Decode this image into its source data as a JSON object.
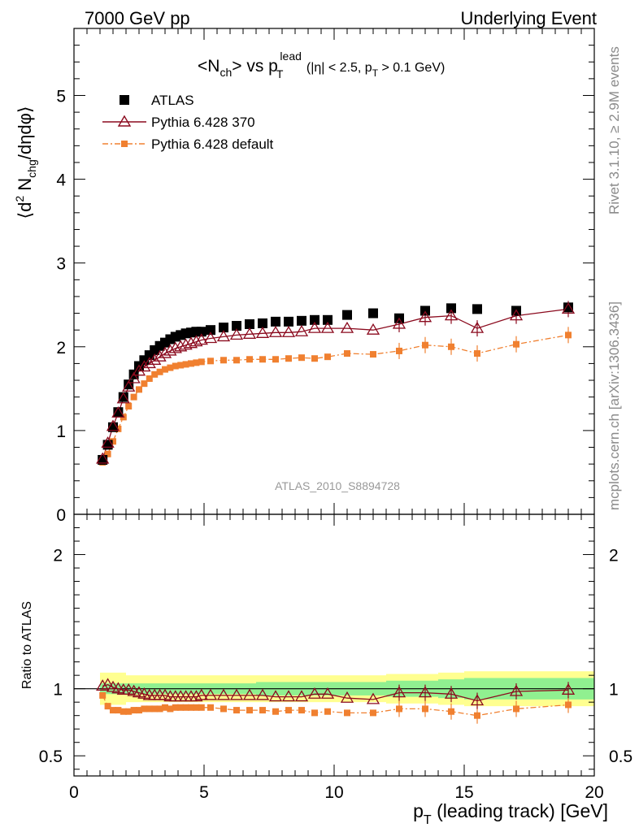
{
  "header": {
    "left_label": "7000 GeV pp",
    "right_label": "Underlying Event"
  },
  "side_labels": {
    "rivet": "Rivet 3.1.10, ≥ 2.9M events",
    "mcplots": "mcplots.cern.ch [arXiv:1306.3436]"
  },
  "colors": {
    "atlas": "#000000",
    "pythia_370": "#8b0a1e",
    "pythia_default": "#f08030",
    "band_inner": "#90f090",
    "band_outer": "#ffff90"
  },
  "chart_data": [
    {
      "type": "scatter",
      "title": "<N_ch> vs p_T^lead (|η| < 2.5, p_T > 0.1 GeV)",
      "title_parts": {
        "main": "<N",
        "sub1": "ch",
        "mid": "> vs p",
        "sub2": "T",
        "sup2": "lead",
        "cut": "(|η| < 2.5, p",
        "cut_sub": "T",
        "cut_end": " > 0.1 GeV)"
      },
      "ylabel": "⟨d² N_chg/dηdφ⟩",
      "ylabel_parts": {
        "a": "⟨d",
        "sup": "2",
        "b": " N",
        "sub": "chg",
        "c": "/dηdφ⟩"
      },
      "xlim": [
        0,
        20
      ],
      "ylim": [
        0,
        5.8
      ],
      "yticks": [
        0,
        1,
        2,
        3,
        4,
        5
      ],
      "legend_position": "top-left",
      "watermark": "ATLAS_2010_S8894728",
      "x": [
        1.1,
        1.3,
        1.5,
        1.7,
        1.9,
        2.1,
        2.3,
        2.5,
        2.7,
        2.9,
        3.1,
        3.3,
        3.5,
        3.7,
        3.9,
        4.1,
        4.3,
        4.5,
        4.7,
        4.9,
        5.25,
        5.75,
        6.25,
        6.75,
        7.25,
        7.75,
        8.25,
        8.75,
        9.25,
        9.75,
        10.5,
        11.5,
        12.5,
        13.5,
        14.5,
        15.5,
        17,
        19
      ],
      "series": [
        {
          "name": "ATLAS",
          "values": [
            0.65,
            0.83,
            1.04,
            1.22,
            1.4,
            1.55,
            1.67,
            1.77,
            1.84,
            1.9,
            1.96,
            2.01,
            2.05,
            2.09,
            2.12,
            2.14,
            2.16,
            2.17,
            2.18,
            2.18,
            2.2,
            2.23,
            2.25,
            2.27,
            2.28,
            2.3,
            2.3,
            2.31,
            2.32,
            2.32,
            2.38,
            2.4,
            2.34,
            2.43,
            2.46,
            2.45,
            2.43,
            2.47
          ]
        },
        {
          "name": "Pythia 6.428 370",
          "values": [
            0.66,
            0.85,
            1.05,
            1.21,
            1.38,
            1.52,
            1.62,
            1.71,
            1.76,
            1.8,
            1.84,
            1.88,
            1.92,
            1.95,
            1.98,
            2.0,
            2.02,
            2.04,
            2.06,
            2.08,
            2.1,
            2.12,
            2.14,
            2.15,
            2.16,
            2.17,
            2.17,
            2.18,
            2.22,
            2.22,
            2.22,
            2.2,
            2.27,
            2.35,
            2.37,
            2.22,
            2.37,
            2.45
          ]
        },
        {
          "name": "Pythia 6.428 default",
          "values": [
            0.62,
            0.72,
            0.87,
            1.02,
            1.16,
            1.29,
            1.4,
            1.49,
            1.56,
            1.62,
            1.67,
            1.7,
            1.73,
            1.75,
            1.77,
            1.78,
            1.79,
            1.8,
            1.81,
            1.82,
            1.83,
            1.84,
            1.84,
            1.85,
            1.85,
            1.85,
            1.86,
            1.87,
            1.86,
            1.88,
            1.92,
            1.91,
            1.95,
            2.02,
            2.0,
            1.92,
            2.03,
            2.14
          ]
        }
      ]
    },
    {
      "type": "scatter",
      "ylabel": "Ratio to ATLAS",
      "xlabel": "p_T (leading track) [GeV]",
      "xlabel_parts": {
        "a": "p",
        "sub": "T",
        "b": " (leading track) [GeV]"
      },
      "xlim": [
        0,
        20
      ],
      "ylim": [
        0.35,
        2.3
      ],
      "yticks": [
        0.5,
        1,
        2
      ],
      "xticks": [
        0,
        5,
        10,
        15,
        20
      ],
      "x": [
        1.1,
        1.3,
        1.5,
        1.7,
        1.9,
        2.1,
        2.3,
        2.5,
        2.7,
        2.9,
        3.1,
        3.3,
        3.5,
        3.7,
        3.9,
        4.1,
        4.3,
        4.5,
        4.7,
        4.9,
        5.25,
        5.75,
        6.25,
        6.75,
        7.25,
        7.75,
        8.25,
        8.75,
        9.25,
        9.75,
        10.5,
        11.5,
        12.5,
        13.5,
        14.5,
        15.5,
        17,
        19
      ],
      "series": [
        {
          "name": "Pythia 6.428 370",
          "values": [
            1.02,
            1.03,
            1.01,
            1.0,
            0.99,
            0.99,
            0.98,
            0.97,
            0.96,
            0.95,
            0.95,
            0.95,
            0.95,
            0.94,
            0.94,
            0.94,
            0.94,
            0.94,
            0.94,
            0.95,
            0.95,
            0.95,
            0.95,
            0.95,
            0.95,
            0.94,
            0.94,
            0.94,
            0.96,
            0.96,
            0.93,
            0.92,
            0.97,
            0.97,
            0.96,
            0.91,
            0.98,
            0.99
          ]
        },
        {
          "name": "Pythia 6.428 default",
          "values": [
            0.95,
            0.87,
            0.84,
            0.84,
            0.83,
            0.83,
            0.84,
            0.84,
            0.85,
            0.85,
            0.85,
            0.85,
            0.86,
            0.85,
            0.86,
            0.86,
            0.86,
            0.86,
            0.86,
            0.86,
            0.86,
            0.85,
            0.84,
            0.84,
            0.84,
            0.83,
            0.84,
            0.84,
            0.82,
            0.83,
            0.82,
            0.82,
            0.85,
            0.85,
            0.83,
            0.8,
            0.85,
            0.88
          ]
        }
      ],
      "bands": {
        "x_edges": [
          1.0,
          2.0,
          3.0,
          5.0,
          7.0,
          10.0,
          12.0,
          14.0,
          15.0,
          20.0
        ],
        "inner_half_width": [
          0.04,
          0.04,
          0.04,
          0.04,
          0.05,
          0.05,
          0.06,
          0.07,
          0.08
        ],
        "outer_half_width": [
          0.12,
          0.1,
          0.1,
          0.1,
          0.1,
          0.1,
          0.11,
          0.12,
          0.13
        ]
      }
    }
  ]
}
